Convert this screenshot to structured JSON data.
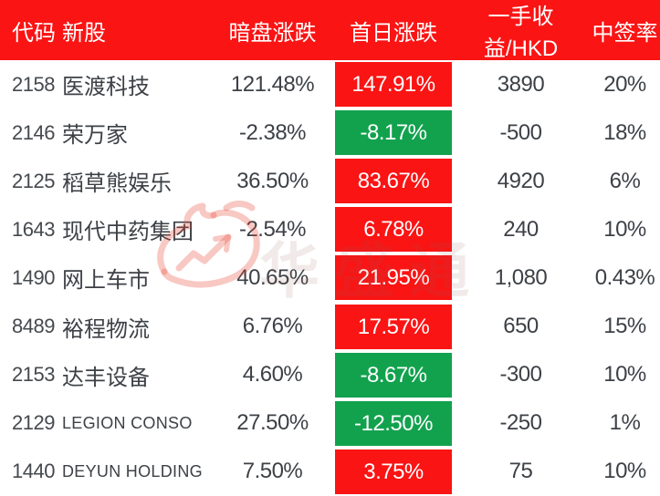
{
  "colors": {
    "red": "#fa1414",
    "green": "#12a24e",
    "header_bg": "#fa1414",
    "header_text": "#ffffff",
    "body_text": "#3d4146"
  },
  "watermark": {
    "text": "华盛通",
    "logo": "huasheng-flame-arrow-logo"
  },
  "table": {
    "columns": [
      {
        "key": "code",
        "label": "代码"
      },
      {
        "key": "name",
        "label": "新股"
      },
      {
        "key": "dark",
        "label": "暗盘涨跌"
      },
      {
        "key": "first",
        "label": "首日涨跌"
      },
      {
        "key": "profit",
        "label": "一手收益/HKD"
      },
      {
        "key": "win",
        "label": "中签率"
      }
    ],
    "rows": [
      {
        "code": "2158",
        "name": "医渡科技",
        "dark": "121.48%",
        "first": "147.91%",
        "first_dir": "up",
        "profit": "3890",
        "win": "20%"
      },
      {
        "code": "2146",
        "name": "荣万家",
        "dark": "-2.38%",
        "first": "-8.17%",
        "first_dir": "down",
        "profit": "-500",
        "win": "18%"
      },
      {
        "code": "2125",
        "name": "稻草熊娱乐",
        "dark": "36.50%",
        "first": "83.67%",
        "first_dir": "up",
        "profit": "4920",
        "win": "6%"
      },
      {
        "code": "1643",
        "name": "现代中药集团",
        "dark": "-2.54%",
        "first": "6.78%",
        "first_dir": "up",
        "profit": "240",
        "win": "10%"
      },
      {
        "code": "1490",
        "name": "网上车市",
        "dark": "40.65%",
        "first": "21.95%",
        "first_dir": "up",
        "profit": "1,080",
        "win": "0.43%"
      },
      {
        "code": "8489",
        "name": "裕程物流",
        "dark": "6.76%",
        "first": "17.57%",
        "first_dir": "up",
        "profit": "650",
        "win": "15%"
      },
      {
        "code": "2153",
        "name": "达丰设备",
        "dark": "4.60%",
        "first": "-8.67%",
        "first_dir": "down",
        "profit": "-300",
        "win": "10%"
      },
      {
        "code": "2129",
        "name": "LEGION CONSO",
        "dark": "27.50%",
        "first": "-12.50%",
        "first_dir": "down",
        "profit": "-250",
        "win": "1%"
      },
      {
        "code": "1440",
        "name": "DEYUN HOLDING",
        "dark": "7.50%",
        "first": "3.75%",
        "first_dir": "up",
        "profit": "75",
        "win": "10%"
      }
    ]
  }
}
